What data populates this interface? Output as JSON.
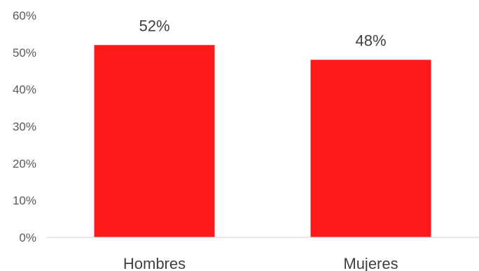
{
  "chart_data": {
    "type": "bar",
    "categories": [
      "Hombres",
      "Mujeres"
    ],
    "values": [
      52,
      48
    ],
    "data_labels": [
      "52%",
      "48%"
    ],
    "y_ticks": [
      {
        "value": 0,
        "label": "0%"
      },
      {
        "value": 10,
        "label": "10%"
      },
      {
        "value": 20,
        "label": "20%"
      },
      {
        "value": 30,
        "label": "30%"
      },
      {
        "value": 40,
        "label": "40%"
      },
      {
        "value": 50,
        "label": "50%"
      },
      {
        "value": 60,
        "label": "60%"
      }
    ],
    "ylim": [
      0,
      60
    ],
    "grid": false,
    "legend": "none",
    "bar_color": "#ff1a1a",
    "axis_color": "#d9d9d9"
  }
}
